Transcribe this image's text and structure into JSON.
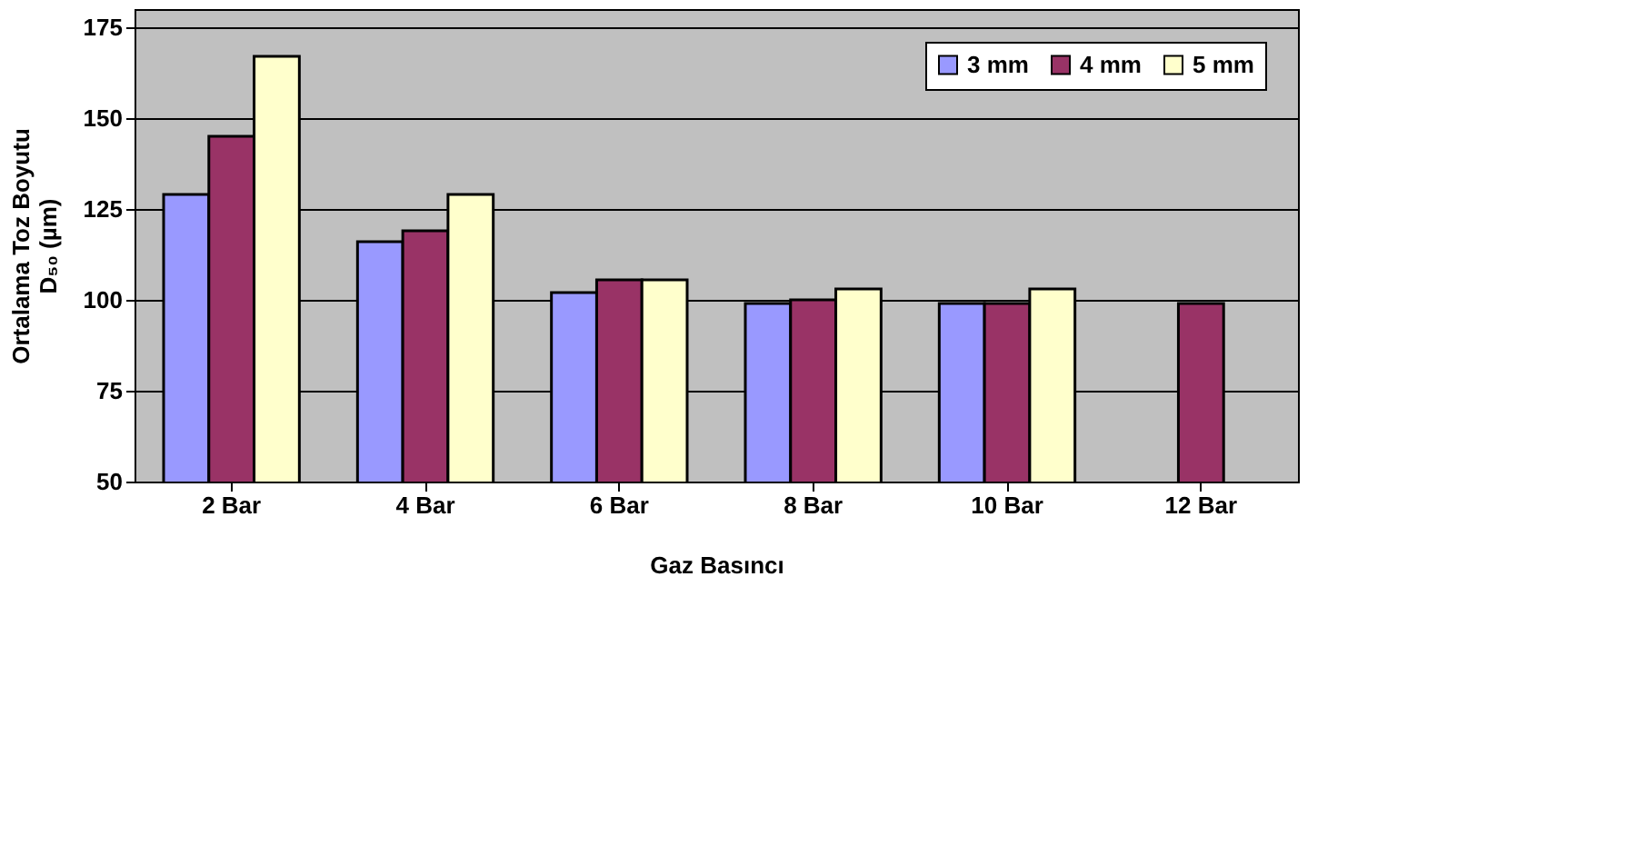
{
  "chart_data": {
    "type": "bar",
    "xlabel": "Gaz Basıncı",
    "ylabel": "Ortalama Toz Boyutu D₅₀ (µm)",
    "categories": [
      "2 Bar",
      "4 Bar",
      "6 Bar",
      "8 Bar",
      "10 Bar",
      "12 Bar"
    ],
    "series": [
      {
        "name": "3 mm",
        "color": "#9999ff",
        "values": [
          129,
          116,
          102,
          99,
          99,
          null
        ]
      },
      {
        "name": "4 mm",
        "color": "#993366",
        "values": [
          145,
          119,
          105.5,
          100,
          99,
          99
        ]
      },
      {
        "name": "5 mm",
        "color": "#ffffcc",
        "values": [
          167,
          129,
          105.5,
          103,
          103,
          null
        ]
      }
    ],
    "ylim": [
      50,
      180
    ],
    "yticks": [
      50,
      75,
      100,
      125,
      150,
      175
    ],
    "grid": "y",
    "legend": "top right"
  }
}
